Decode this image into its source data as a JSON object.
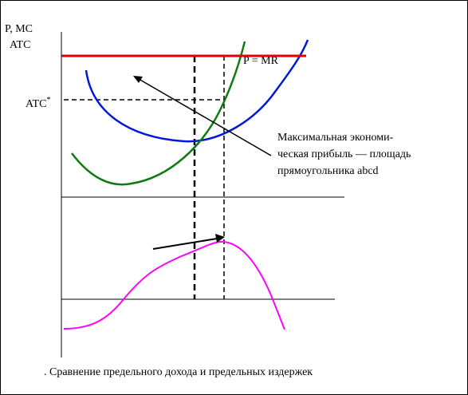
{
  "axis_labels": {
    "y_top": "P, MC",
    "y_second": "ATC"
  },
  "atc_star": {
    "label": "ATC",
    "superscript": "*"
  },
  "price_line_label": "P = MR",
  "annotation": {
    "lines": [
      "Максимальная экономи-",
      "ческая прибыль — площадь",
      "прямоугольника abcd"
    ]
  },
  "caption": ". Сравнение предельного дохода и предельных издержек"
}
